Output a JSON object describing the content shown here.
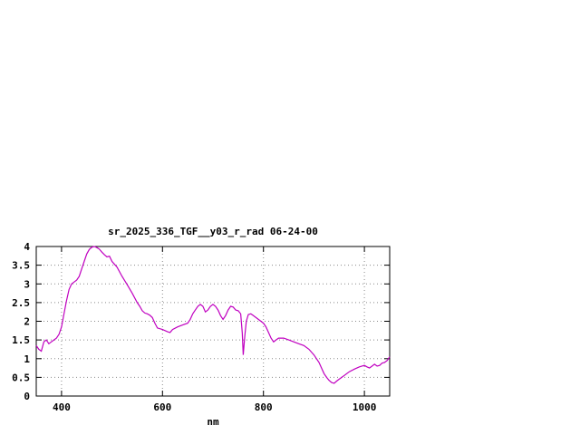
{
  "window": {
    "background": "#ffffff"
  },
  "chart_data": {
    "type": "line",
    "title": "sr_2025_336_TGF__y03_r_rad 06-24-00",
    "xlabel": "nm",
    "ylabel": "",
    "xlim": [
      350,
      1050
    ],
    "ylim": [
      0,
      4
    ],
    "grid": true,
    "legend": "none",
    "line_color": "#c000c0",
    "xticks": {
      "values": [
        400,
        600,
        800,
        1000
      ],
      "labels": [
        "400",
        "600",
        "800",
        "1000"
      ]
    },
    "yticks": {
      "values": [
        0,
        0.5,
        1,
        1.5,
        2,
        2.5,
        3,
        3.5,
        4
      ],
      "labels": [
        "0",
        "0.5",
        "1",
        "1.5",
        "2",
        "2.5",
        "3",
        "3.5",
        "4"
      ]
    },
    "series": [
      {
        "name": "sr_2025_336_TGF__y03_r_rad",
        "points": [
          [
            350,
            1.35
          ],
          [
            355,
            1.25
          ],
          [
            360,
            1.2
          ],
          [
            365,
            1.45
          ],
          [
            370,
            1.5
          ],
          [
            375,
            1.4
          ],
          [
            380,
            1.45
          ],
          [
            385,
            1.5
          ],
          [
            390,
            1.55
          ],
          [
            395,
            1.65
          ],
          [
            400,
            1.85
          ],
          [
            405,
            2.2
          ],
          [
            410,
            2.55
          ],
          [
            415,
            2.85
          ],
          [
            420,
            3.0
          ],
          [
            425,
            3.05
          ],
          [
            430,
            3.1
          ],
          [
            435,
            3.2
          ],
          [
            440,
            3.4
          ],
          [
            445,
            3.6
          ],
          [
            450,
            3.8
          ],
          [
            455,
            3.92
          ],
          [
            460,
            3.98
          ],
          [
            465,
            4.0
          ],
          [
            470,
            3.97
          ],
          [
            475,
            3.93
          ],
          [
            480,
            3.85
          ],
          [
            485,
            3.78
          ],
          [
            490,
            3.72
          ],
          [
            495,
            3.74
          ],
          [
            500,
            3.6
          ],
          [
            510,
            3.45
          ],
          [
            520,
            3.2
          ],
          [
            530,
            2.98
          ],
          [
            540,
            2.75
          ],
          [
            550,
            2.5
          ],
          [
            555,
            2.4
          ],
          [
            560,
            2.28
          ],
          [
            565,
            2.22
          ],
          [
            570,
            2.2
          ],
          [
            575,
            2.16
          ],
          [
            580,
            2.1
          ],
          [
            585,
            1.95
          ],
          [
            590,
            1.82
          ],
          [
            600,
            1.78
          ],
          [
            610,
            1.72
          ],
          [
            615,
            1.7
          ],
          [
            620,
            1.78
          ],
          [
            630,
            1.85
          ],
          [
            640,
            1.9
          ],
          [
            650,
            1.95
          ],
          [
            655,
            2.05
          ],
          [
            660,
            2.2
          ],
          [
            665,
            2.3
          ],
          [
            670,
            2.4
          ],
          [
            675,
            2.45
          ],
          [
            680,
            2.4
          ],
          [
            685,
            2.25
          ],
          [
            690,
            2.3
          ],
          [
            695,
            2.4
          ],
          [
            700,
            2.45
          ],
          [
            705,
            2.4
          ],
          [
            710,
            2.3
          ],
          [
            715,
            2.15
          ],
          [
            720,
            2.05
          ],
          [
            725,
            2.15
          ],
          [
            730,
            2.3
          ],
          [
            735,
            2.4
          ],
          [
            740,
            2.38
          ],
          [
            745,
            2.3
          ],
          [
            750,
            2.28
          ],
          [
            755,
            2.2
          ],
          [
            758,
            1.7
          ],
          [
            760,
            1.1
          ],
          [
            763,
            1.6
          ],
          [
            766,
            2.0
          ],
          [
            770,
            2.18
          ],
          [
            775,
            2.2
          ],
          [
            780,
            2.15
          ],
          [
            790,
            2.05
          ],
          [
            800,
            1.95
          ],
          [
            805,
            1.85
          ],
          [
            810,
            1.7
          ],
          [
            815,
            1.55
          ],
          [
            820,
            1.45
          ],
          [
            825,
            1.5
          ],
          [
            830,
            1.55
          ],
          [
            840,
            1.55
          ],
          [
            850,
            1.5
          ],
          [
            860,
            1.45
          ],
          [
            870,
            1.4
          ],
          [
            880,
            1.35
          ],
          [
            890,
            1.25
          ],
          [
            900,
            1.1
          ],
          [
            910,
            0.9
          ],
          [
            915,
            0.75
          ],
          [
            920,
            0.6
          ],
          [
            925,
            0.5
          ],
          [
            930,
            0.42
          ],
          [
            935,
            0.36
          ],
          [
            940,
            0.34
          ],
          [
            945,
            0.4
          ],
          [
            950,
            0.45
          ],
          [
            955,
            0.5
          ],
          [
            960,
            0.55
          ],
          [
            970,
            0.65
          ],
          [
            980,
            0.72
          ],
          [
            990,
            0.78
          ],
          [
            1000,
            0.82
          ],
          [
            1005,
            0.78
          ],
          [
            1010,
            0.75
          ],
          [
            1015,
            0.8
          ],
          [
            1020,
            0.85
          ],
          [
            1025,
            0.8
          ],
          [
            1030,
            0.82
          ],
          [
            1035,
            0.88
          ],
          [
            1040,
            0.9
          ],
          [
            1045,
            0.95
          ],
          [
            1050,
            1.05
          ]
        ]
      }
    ]
  }
}
